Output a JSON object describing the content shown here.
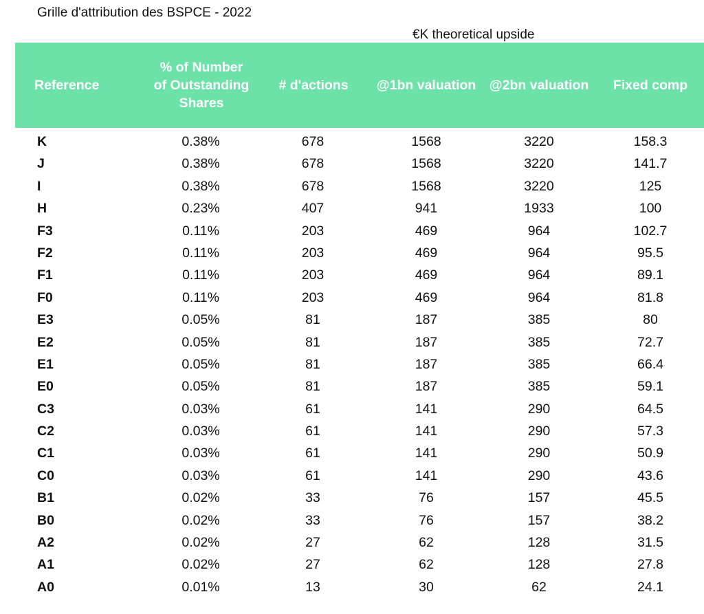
{
  "title": "Grille d'attribution des BSPCE - 2022",
  "upside_label": "€K theoretical upside",
  "columns": {
    "reference": "Reference",
    "pct": "% of Number of Outstanding Shares",
    "shares": "# d'actions",
    "v1": "@1bn valuation",
    "v2": "@2bn valuation",
    "fixed": "Fixed comp"
  },
  "header_color": "#6ce2a9",
  "rows": [
    {
      "ref": "K",
      "pct": "0.38%",
      "shares": "678",
      "v1": "1568",
      "v2": "3220",
      "fixed": "158.3"
    },
    {
      "ref": "J",
      "pct": "0.38%",
      "shares": "678",
      "v1": "1568",
      "v2": "3220",
      "fixed": "141.7"
    },
    {
      "ref": "I",
      "pct": "0.38%",
      "shares": "678",
      "v1": "1568",
      "v2": "3220",
      "fixed": "125"
    },
    {
      "ref": "H",
      "pct": "0.23%",
      "shares": "407",
      "v1": "941",
      "v2": "1933",
      "fixed": "100"
    },
    {
      "ref": "F3",
      "pct": "0.11%",
      "shares": "203",
      "v1": "469",
      "v2": "964",
      "fixed": "102.7"
    },
    {
      "ref": "F2",
      "pct": "0.11%",
      "shares": "203",
      "v1": "469",
      "v2": "964",
      "fixed": "95.5"
    },
    {
      "ref": "F1",
      "pct": "0.11%",
      "shares": "203",
      "v1": "469",
      "v2": "964",
      "fixed": "89.1"
    },
    {
      "ref": "F0",
      "pct": "0.11%",
      "shares": "203",
      "v1": "469",
      "v2": "964",
      "fixed": "81.8"
    },
    {
      "ref": "E3",
      "pct": "0.05%",
      "shares": "81",
      "v1": "187",
      "v2": "385",
      "fixed": "80"
    },
    {
      "ref": "E2",
      "pct": "0.05%",
      "shares": "81",
      "v1": "187",
      "v2": "385",
      "fixed": "72.7"
    },
    {
      "ref": "E1",
      "pct": "0.05%",
      "shares": "81",
      "v1": "187",
      "v2": "385",
      "fixed": "66.4"
    },
    {
      "ref": "E0",
      "pct": "0.05%",
      "shares": "81",
      "v1": "187",
      "v2": "385",
      "fixed": "59.1"
    },
    {
      "ref": "C3",
      "pct": "0.03%",
      "shares": "61",
      "v1": "141",
      "v2": "290",
      "fixed": "64.5"
    },
    {
      "ref": "C2",
      "pct": "0.03%",
      "shares": "61",
      "v1": "141",
      "v2": "290",
      "fixed": "57.3"
    },
    {
      "ref": "C1",
      "pct": "0.03%",
      "shares": "61",
      "v1": "141",
      "v2": "290",
      "fixed": "50.9"
    },
    {
      "ref": "C0",
      "pct": "0.03%",
      "shares": "61",
      "v1": "141",
      "v2": "290",
      "fixed": "43.6"
    },
    {
      "ref": "B1",
      "pct": "0.02%",
      "shares": "33",
      "v1": "76",
      "v2": "157",
      "fixed": "45.5"
    },
    {
      "ref": "B0",
      "pct": "0.02%",
      "shares": "33",
      "v1": "76",
      "v2": "157",
      "fixed": "38.2"
    },
    {
      "ref": "A2",
      "pct": "0.02%",
      "shares": "27",
      "v1": "62",
      "v2": "128",
      "fixed": "31.5"
    },
    {
      "ref": "A1",
      "pct": "0.02%",
      "shares": "27",
      "v1": "62",
      "v2": "128",
      "fixed": "27.8"
    },
    {
      "ref": "A0",
      "pct": "0.01%",
      "shares": "13",
      "v1": "30",
      "v2": "62",
      "fixed": "24.1"
    }
  ]
}
